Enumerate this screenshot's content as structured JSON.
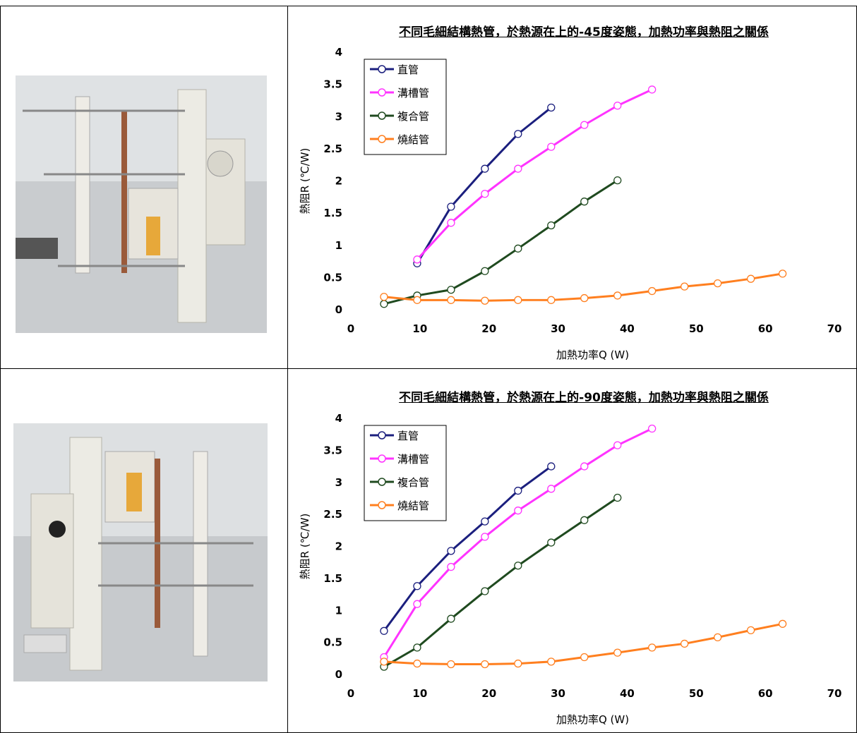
{
  "chart_data": [
    {
      "type": "line",
      "title": "不同毛細結構熱管，於熱源在上的-45度姿態，加熱功率與熱阻之關係",
      "x_label": "加熱功率Q (W)",
      "y_label": "熱阻R (℃/W)",
      "xlim": [
        0,
        70
      ],
      "xticks": [
        0,
        10,
        20,
        30,
        40,
        50,
        60,
        70
      ],
      "ylim": [
        0,
        4
      ],
      "yticks": [
        0,
        0.5,
        1,
        1.5,
        2,
        2.5,
        3,
        3.5,
        4
      ],
      "legend": "upper left",
      "series": [
        {
          "name": "直管",
          "color": "#1b1f7e",
          "x": [
            9.6,
            14.5,
            19.4,
            24.2,
            29
          ],
          "values": [
            0.72,
            1.6,
            2.19,
            2.73,
            3.14
          ]
        },
        {
          "name": "溝槽管",
          "color": "#ff33ff",
          "x": [
            9.6,
            14.5,
            19.4,
            24.2,
            29,
            33.8,
            38.6,
            43.6
          ],
          "values": [
            0.78,
            1.35,
            1.8,
            2.19,
            2.53,
            2.87,
            3.17,
            3.42
          ]
        },
        {
          "name": "複合管",
          "color": "#1f4a1f",
          "x": [
            4.8,
            9.6,
            14.5,
            19.4,
            24.2,
            29,
            33.8,
            38.6
          ],
          "values": [
            0.09,
            0.22,
            0.31,
            0.6,
            0.95,
            1.31,
            1.68,
            2.01
          ]
        },
        {
          "name": "燒結管",
          "color": "#ff7f1f",
          "x": [
            4.8,
            9.6,
            14.5,
            19.4,
            24.2,
            29,
            33.8,
            38.6,
            43.6,
            48.3,
            53.1,
            57.9,
            62.5
          ],
          "values": [
            0.2,
            0.15,
            0.15,
            0.14,
            0.15,
            0.15,
            0.18,
            0.22,
            0.29,
            0.36,
            0.41,
            0.48,
            0.56
          ]
        }
      ]
    },
    {
      "type": "line",
      "title": "不同毛細結構熱管，於熱源在上的-90度姿態，加熱功率與熱阻之關係",
      "x_label": "加熱功率Q (W)",
      "y_label": "熱阻R (℃/W)",
      "xlim": [
        0,
        70
      ],
      "xticks": [
        0,
        10,
        20,
        30,
        40,
        50,
        60,
        70
      ],
      "ylim": [
        0,
        4
      ],
      "yticks": [
        0,
        0.5,
        1,
        1.5,
        2,
        2.5,
        3,
        3.5,
        4
      ],
      "legend": "upper left",
      "series": [
        {
          "name": "直管",
          "color": "#1b1f7e",
          "x": [
            4.8,
            9.6,
            14.5,
            19.4,
            24.2,
            29
          ],
          "values": [
            0.68,
            1.38,
            1.93,
            2.39,
            2.87,
            3.25
          ]
        },
        {
          "name": "溝槽管",
          "color": "#ff33ff",
          "x": [
            4.8,
            9.6,
            14.5,
            19.4,
            24.2,
            29,
            33.8,
            38.6,
            43.6
          ],
          "values": [
            0.27,
            1.1,
            1.68,
            2.15,
            2.56,
            2.9,
            3.25,
            3.58,
            3.84
          ]
        },
        {
          "name": "複合管",
          "color": "#1f4a1f",
          "x": [
            4.8,
            9.6,
            14.5,
            19.4,
            24.2,
            29,
            33.8,
            38.6
          ],
          "values": [
            0.12,
            0.42,
            0.87,
            1.3,
            1.7,
            2.06,
            2.41,
            2.76
          ]
        },
        {
          "name": "燒結管",
          "color": "#ff7f1f",
          "x": [
            4.8,
            9.6,
            14.5,
            19.4,
            24.2,
            29,
            33.8,
            38.6,
            43.6,
            48.3,
            53.1,
            57.9,
            62.5
          ],
          "values": [
            0.2,
            0.17,
            0.16,
            0.16,
            0.17,
            0.2,
            0.27,
            0.34,
            0.42,
            0.48,
            0.58,
            0.69,
            0.79
          ]
        }
      ]
    }
  ]
}
